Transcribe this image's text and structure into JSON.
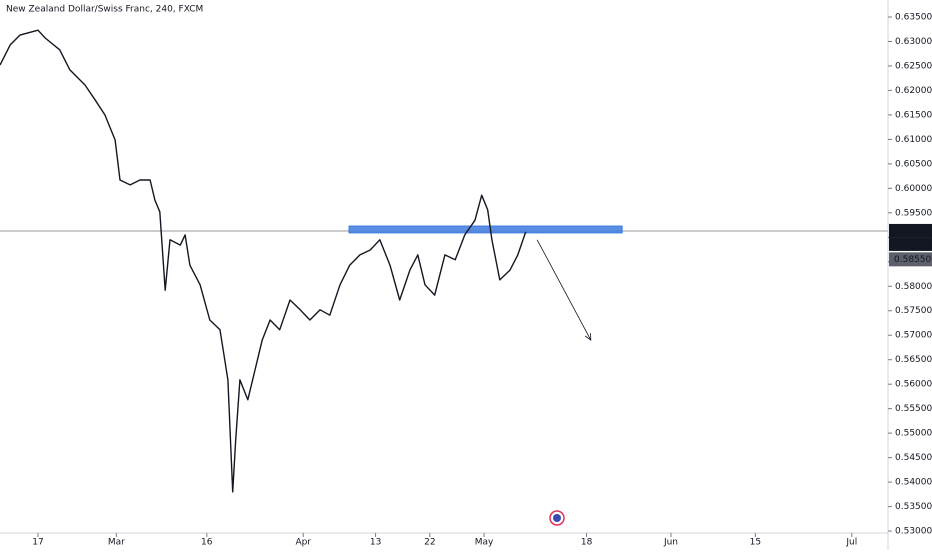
{
  "chart_data": {
    "type": "line",
    "title": "New Zealand Dollar/Swiss Franc, 240, FXCM",
    "x": [
      41.7,
      43.4,
      45.0,
      48.0,
      49.2,
      51.6,
      53.3,
      55.8,
      57.5,
      59.1,
      60.8,
      61.6,
      63.3,
      64.9,
      66.6,
      67.4,
      68.2,
      69.1,
      69.9,
      71.6,
      72.4,
      73.2,
      74.9,
      76.5,
      78.2,
      79.5,
      80.3,
      80.8,
      81.5,
      82.8,
      84.0,
      85.2,
      86.5,
      88.1,
      89.8,
      91.5,
      93.1,
      94.8,
      96.4,
      98.1,
      99.7,
      101.4,
      103.1,
      104.7,
      106.4,
      108.0,
      109.7,
      111.0,
      112.2,
      113.8,
      115.5,
      117.2,
      118.8,
      120.5,
      121.6,
      122.6,
      123.3,
      124.6,
      126.3,
      127.6,
      128.9
    ],
    "values": [
      0.6252,
      0.6293,
      0.6313,
      0.6323,
      0.6307,
      0.6283,
      0.6242,
      0.6211,
      0.618,
      0.615,
      0.6099,
      0.6017,
      0.6007,
      0.6017,
      0.6017,
      0.5976,
      0.5952,
      0.5792,
      0.5895,
      0.5884,
      0.5905,
      0.5843,
      0.5803,
      0.5731,
      0.5711,
      0.5609,
      0.538,
      0.5486,
      0.5609,
      0.5568,
      0.5629,
      0.569,
      0.5731,
      0.5711,
      0.5772,
      0.5752,
      0.5731,
      0.5752,
      0.5741,
      0.5803,
      0.5843,
      0.5864,
      0.5874,
      0.5895,
      0.5843,
      0.5772,
      0.5833,
      0.5864,
      0.5803,
      0.5782,
      0.5864,
      0.5854,
      0.5905,
      0.5935,
      0.5986,
      0.5956,
      0.5895,
      0.5813,
      0.5833,
      0.5864,
      0.5911
    ],
    "color": "#131722",
    "xlim": [
      41.7,
      189
    ],
    "xticks": [
      {
        "value": 48,
        "label": "17"
      },
      {
        "value": 61,
        "label": "Mar"
      },
      {
        "value": 76,
        "label": "16"
      },
      {
        "value": 92,
        "label": "Apr"
      },
      {
        "value": 104,
        "label": "13"
      },
      {
        "value": 113,
        "label": "22"
      },
      {
        "value": 122,
        "label": "May"
      },
      {
        "value": 139,
        "label": "18"
      },
      {
        "value": 153,
        "label": "Jun"
      },
      {
        "value": 167,
        "label": "15"
      },
      {
        "value": 183,
        "label": "Jul"
      }
    ],
    "ylim": [
      0.52654,
      0.63847
    ],
    "yticks": [
      {
        "value": 0.635,
        "label": "0.63500"
      },
      {
        "value": 0.63,
        "label": "0.63000"
      },
      {
        "value": 0.625,
        "label": "0.62500"
      },
      {
        "value": 0.62,
        "label": "0.62000"
      },
      {
        "value": 0.615,
        "label": "0.61500"
      },
      {
        "value": 0.61,
        "label": "0.61000"
      },
      {
        "value": 0.605,
        "label": "0.60500"
      },
      {
        "value": 0.6,
        "label": "0.60000"
      },
      {
        "value": 0.595,
        "label": "0.59500"
      },
      {
        "value": 0.59,
        "label": "0.59000"
      },
      {
        "value": 0.585,
        "label": "0.58500"
      },
      {
        "value": 0.58,
        "label": "0.58000"
      },
      {
        "value": 0.575,
        "label": "0.57500"
      },
      {
        "value": 0.57,
        "label": "0.57000"
      },
      {
        "value": 0.565,
        "label": "0.56500"
      },
      {
        "value": 0.56,
        "label": "0.56000"
      },
      {
        "value": 0.555,
        "label": "0.55500"
      },
      {
        "value": 0.55,
        "label": "0.55000"
      },
      {
        "value": 0.545,
        "label": "0.54500"
      },
      {
        "value": 0.54,
        "label": "0.54000"
      },
      {
        "value": 0.535,
        "label": "0.53500"
      },
      {
        "value": 0.53,
        "label": "0.53000"
      }
    ],
    "price_line": {
      "value": 0.5913,
      "label": "0.59130"
    },
    "countdown": "01:21:13",
    "second_price": {
      "value": 0.5855,
      "label": "0.58550"
    },
    "zone": {
      "x": [
        99.6,
        144.9
      ],
      "y": [
        0.5909,
        0.5923
      ],
      "color": "#3d7be0"
    },
    "arrow": {
      "x": [
        130.8,
        139.7
      ],
      "y": [
        0.5895,
        0.569
      ]
    }
  }
}
